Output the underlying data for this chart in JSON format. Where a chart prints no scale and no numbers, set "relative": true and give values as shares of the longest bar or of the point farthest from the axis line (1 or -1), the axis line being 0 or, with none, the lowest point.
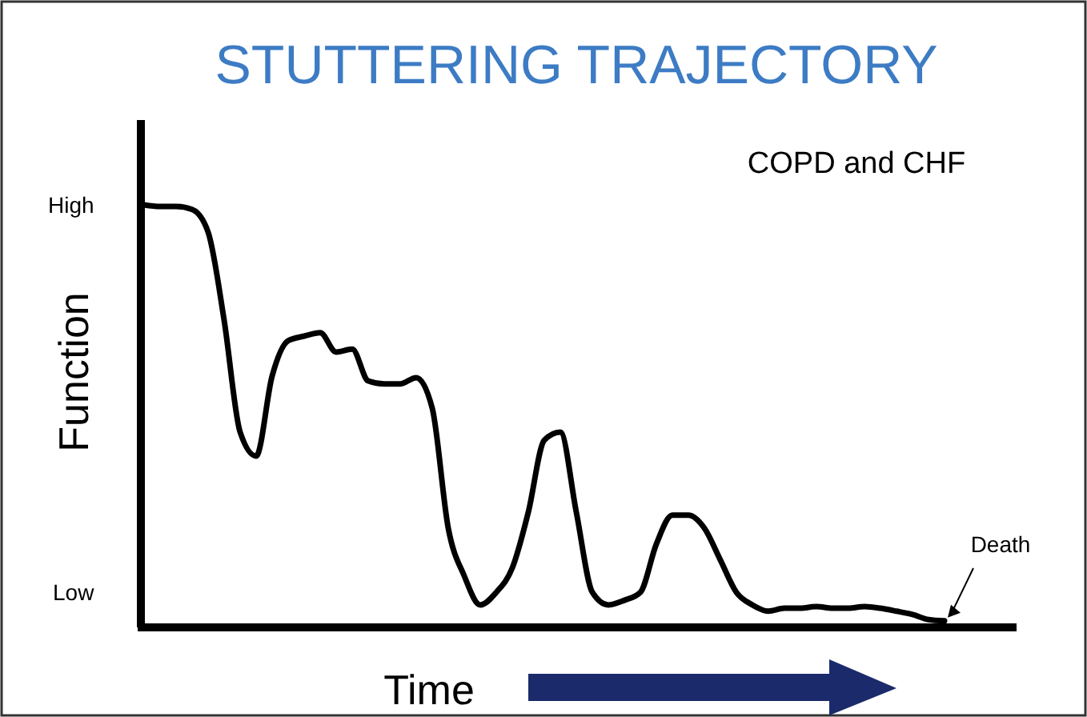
{
  "chart_data": {
    "type": "line",
    "title": "STUTTERING TRAJECTORY",
    "subtitle": "COPD and CHF",
    "xlabel": "Time",
    "ylabel": "Function",
    "relative": true,
    "annotations": [
      "High",
      "Low",
      "Death"
    ],
    "categories": [
      null,
      null,
      null,
      null,
      null,
      null,
      null,
      null,
      null,
      null,
      null,
      null,
      null,
      null,
      null,
      null,
      null,
      null,
      null,
      null,
      null,
      null,
      null,
      null,
      null,
      null,
      null,
      null,
      null,
      null,
      null,
      null,
      null,
      null,
      null,
      null,
      null,
      null,
      null,
      null,
      null,
      null,
      null,
      null,
      null,
      null,
      null,
      null,
      null,
      null,
      null
    ],
    "series": [
      {
        "color": "#000000",
        "values": [
          1.0,
          0.996,
          0.996,
          0.989,
          0.935,
          0.725,
          0.458,
          0.401,
          0.592,
          0.676,
          0.687,
          0.695,
          0.649,
          0.656,
          0.58,
          0.573,
          0.573,
          0.588,
          0.515,
          0.229,
          0.115,
          0.046,
          0.076,
          0.134,
          0.267,
          0.439,
          0.458,
          0.267,
          0.076,
          0.046,
          0.057,
          0.076,
          0.191,
          0.26,
          0.26,
          0.229,
          0.153,
          0.076,
          0.046,
          0.031,
          0.038,
          0.038,
          0.042,
          0.038,
          0.038,
          0.042,
          0.038,
          0.031,
          0.023,
          0.011,
          0.008
        ]
      }
    ],
    "grid": false,
    "marker": "none",
    "line_style": "solid"
  }
}
